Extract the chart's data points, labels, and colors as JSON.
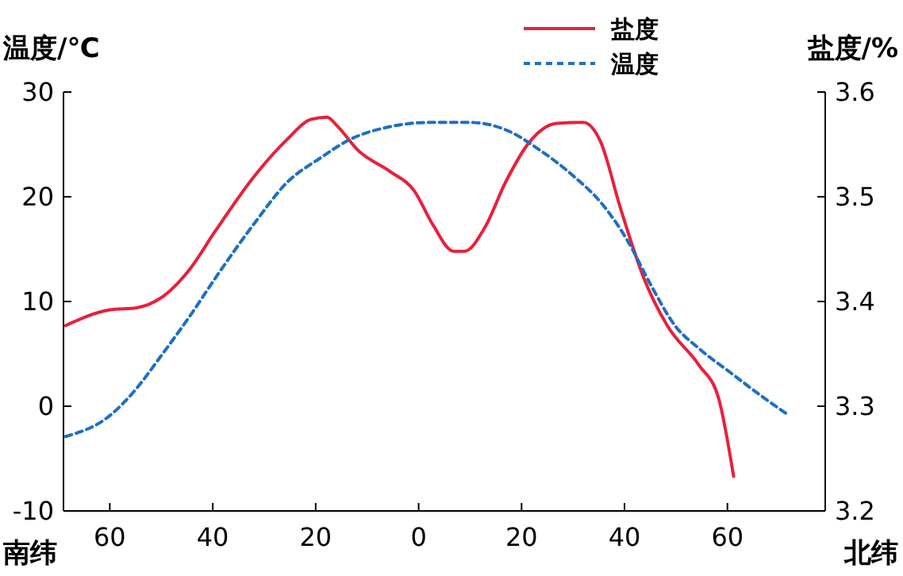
{
  "chart_data": {
    "type": "line",
    "ylabel": "温度/℃",
    "y2label": "盐度/%",
    "annotations": [
      "南纬",
      "北纬"
    ],
    "xlim": [
      -69,
      79
    ],
    "xticks": [
      {
        "value": -60,
        "label": "60"
      },
      {
        "value": -40,
        "label": "40"
      },
      {
        "value": -20,
        "label": "20"
      },
      0,
      20,
      40,
      60
    ],
    "ylim": [
      -10,
      30
    ],
    "yticks": [
      -10,
      0,
      10,
      20,
      30
    ],
    "y2lim": [
      3.2,
      3.6
    ],
    "y2ticks": [
      3.2,
      3.3,
      3.4,
      3.5,
      3.6
    ],
    "legend": "top right",
    "grid": false,
    "series": [
      {
        "name": "盐度",
        "color": "#e8203a",
        "axis": "y2",
        "line_style": "solid",
        "x": [
          -68.6,
          -60,
          -54.8,
          -50.2,
          -44.6,
          -39.4,
          -31.7,
          -25.5,
          -20.9,
          -17.8,
          -15.7,
          -11.7,
          -5.5,
          -0.9,
          2.8,
          6.8,
          8.9,
          12.9,
          16.9,
          21.5,
          26.8,
          32,
          35.4,
          39.1,
          43.7,
          48.3,
          54.5,
          58.2,
          61.2
        ],
        "values": [
          3.377,
          3.392,
          3.394,
          3.403,
          3.43,
          3.468,
          3.521,
          3.555,
          3.574,
          3.576,
          3.567,
          3.544,
          3.524,
          3.506,
          3.473,
          3.448,
          3.448,
          3.471,
          3.514,
          3.552,
          3.57,
          3.571,
          3.552,
          3.491,
          3.423,
          3.377,
          3.339,
          3.309,
          3.233
        ]
      },
      {
        "name": "温度",
        "color": "#1f6fc0",
        "line_style": "dashed",
        "x": [
          -68.6,
          -60,
          -54.8,
          -50.2,
          -44.6,
          -39.4,
          -31.7,
          -25.5,
          -19.4,
          -13.2,
          -5.5,
          2.2,
          9.8,
          16.9,
          23.7,
          29.8,
          36,
          40.6,
          45.2,
          49.8,
          54.5,
          60.6,
          66.8,
          72
        ],
        "values": [
          -2.9,
          -0.9,
          1.7,
          4.7,
          8.5,
          12.3,
          17.6,
          21.4,
          23.6,
          25.5,
          26.7,
          27.1,
          27.1,
          26.4,
          24.4,
          22.1,
          19.1,
          15.8,
          11.5,
          7.7,
          5.5,
          3.2,
          0.9,
          -0.9
        ]
      }
    ]
  }
}
